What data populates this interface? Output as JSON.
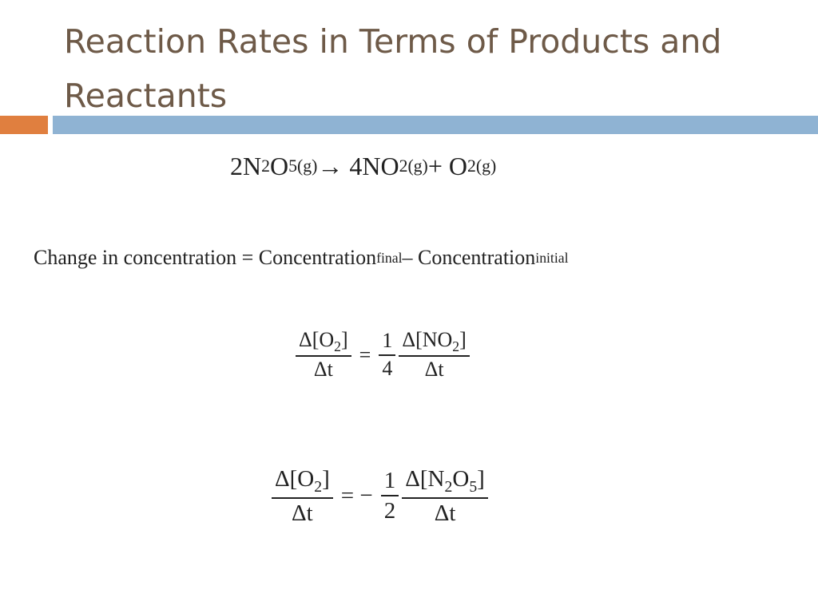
{
  "slide": {
    "title": "Reaction Rates in Terms of Products and Reactants",
    "reaction": [
      [
        "2N",
        "2"
      ],
      [
        "O",
        "5(g)"
      ],
      [
        " → 4NO",
        "2(g)"
      ],
      [
        " + O",
        "2(g)"
      ]
    ],
    "definition": [
      [
        "Change in concentration = Concentration",
        "final"
      ],
      [
        " – Concentration",
        "initial"
      ]
    ],
    "rate1": {
      "lhs": {
        "num": [
          [
            "Δ[O",
            "2"
          ],
          [
            "]"
          ]
        ],
        "den": "Δt"
      },
      "eq": "=",
      "coef": {
        "num": "1",
        "den": "4"
      },
      "rhs": {
        "num": [
          [
            "Δ[NO",
            "2"
          ],
          [
            "]"
          ]
        ],
        "den": "Δt"
      }
    },
    "rate2": {
      "lhs": {
        "num": [
          [
            "Δ[O",
            "2"
          ],
          [
            "]"
          ]
        ],
        "den": "Δt"
      },
      "eq": "= −",
      "coef": {
        "num": "1",
        "den": "2"
      },
      "rhs": {
        "num": [
          [
            "Δ[N",
            "2"
          ],
          [
            "O",
            "5"
          ],
          [
            "]"
          ]
        ],
        "den": "Δt"
      }
    }
  }
}
